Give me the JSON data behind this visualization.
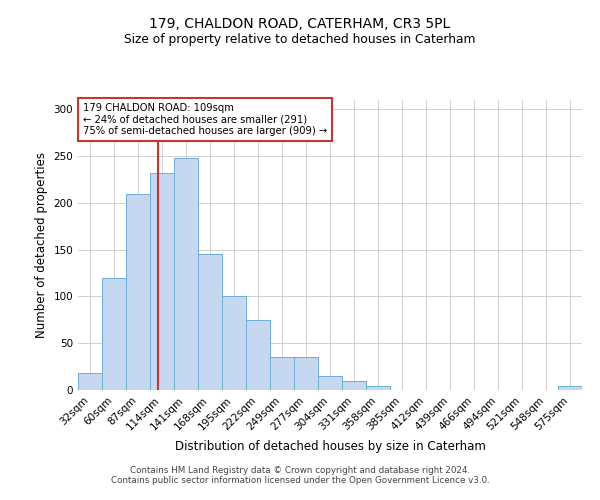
{
  "title1": "179, CHALDON ROAD, CATERHAM, CR3 5PL",
  "title2": "Size of property relative to detached houses in Caterham",
  "xlabel": "Distribution of detached houses by size in Caterham",
  "ylabel": "Number of detached properties",
  "categories": [
    "32sqm",
    "60sqm",
    "87sqm",
    "114sqm",
    "141sqm",
    "168sqm",
    "195sqm",
    "222sqm",
    "249sqm",
    "277sqm",
    "304sqm",
    "331sqm",
    "358sqm",
    "385sqm",
    "412sqm",
    "439sqm",
    "466sqm",
    "494sqm",
    "521sqm",
    "548sqm",
    "575sqm"
  ],
  "values": [
    18,
    120,
    209,
    232,
    248,
    145,
    100,
    75,
    35,
    35,
    15,
    10,
    4,
    0,
    0,
    0,
    0,
    0,
    0,
    0,
    4
  ],
  "bar_color": "#c5d8f0",
  "bar_edge_color": "#6baed6",
  "annotation_line1": "179 CHALDON ROAD: 109sqm",
  "annotation_line2": "← 24% of detached houses are smaller (291)",
  "annotation_line3": "75% of semi-detached houses are larger (909) →",
  "vline_color": "#c0392b",
  "annotation_box_color": "#ffffff",
  "annotation_box_edge": "#c0392b",
  "footer1": "Contains HM Land Registry data © Crown copyright and database right 2024.",
  "footer2": "Contains public sector information licensed under the Open Government Licence v3.0.",
  "ylim": [
    0,
    310
  ],
  "vline_bar_index": 2.85
}
